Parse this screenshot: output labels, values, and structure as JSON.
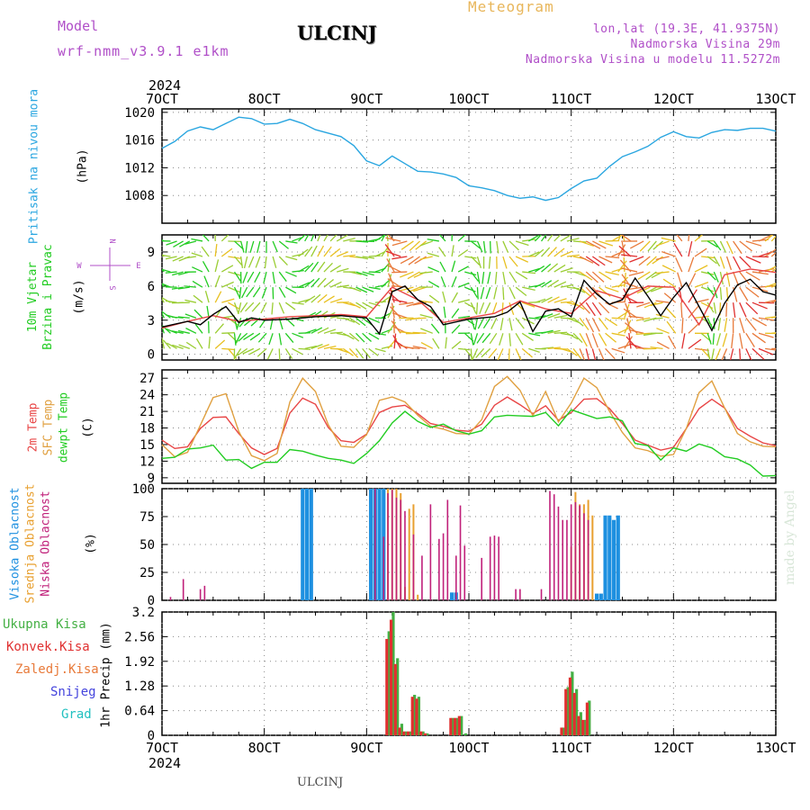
{
  "header": {
    "model_label": "Model",
    "model_name": "wrf-nmm_v3.9.1 e1km",
    "station": "ULCINJ",
    "meteogram": "Meteogram",
    "lonlat": "lon,lat (19.3E, 41.9375N)",
    "elevation": "Nadmorska Visina 29m",
    "model_elevation": "Nadmorska Visina u modelu 11.5272m"
  },
  "footer": "ULCINJ",
  "watermark": "made by Angel",
  "year": "2024",
  "colors": {
    "pressure": "#2aa6e0",
    "wind_label": "#22cc22",
    "temp2m": "#e84545",
    "sfc": "#e0a040",
    "dewpt": "#22cc22",
    "high_cloud": "#1e90e0",
    "mid_cloud": "#e8a030",
    "low_cloud": "#c0207a",
    "total_precip": "#44b044",
    "conv_precip": "#e03030",
    "frz_precip": "#e87a3a",
    "snow": "#4444dd",
    "hail": "#22c0c0",
    "compass": "#b04fc8"
  },
  "chart_data": [
    {
      "type": "line",
      "title": "",
      "ylabel": "Pritisak na nivou mora",
      "unit": "(hPa)",
      "ylim": [
        1004,
        1020.5
      ],
      "yticks": [
        1008,
        1012,
        1016,
        1020
      ],
      "xlim": [
        0,
        144
      ],
      "xticks": [
        "7OCT",
        "8OCT",
        "9OCT",
        "10OCT",
        "11OCT",
        "12OCT",
        "13OCT"
      ],
      "series": [
        {
          "color": "#2aa6e0",
          "x": [
            0,
            3,
            6,
            9,
            12,
            15,
            18,
            21,
            24,
            27,
            30,
            33,
            36,
            39,
            42,
            45,
            48,
            51,
            54,
            57,
            60,
            63,
            66,
            69,
            72,
            75,
            78,
            81,
            84,
            87,
            90,
            93,
            96,
            99,
            102,
            105,
            108,
            111,
            114,
            117,
            120,
            123,
            126,
            129,
            132,
            135,
            138,
            141,
            144
          ],
          "y": [
            1014.8,
            1015.8,
            1017.3,
            1017.9,
            1017.5,
            1018.4,
            1019.3,
            1019.1,
            1018.3,
            1018.4,
            1019.0,
            1018.4,
            1017.5,
            1017.0,
            1016.5,
            1015.2,
            1013.0,
            1012.3,
            1013.7,
            1012.6,
            1011.5,
            1011.4,
            1011.1,
            1010.6,
            1009.4,
            1009.1,
            1008.7,
            1008.0,
            1007.6,
            1007.8,
            1007.3,
            1007.7,
            1009.0,
            1010.1,
            1010.5,
            1012.2,
            1013.6,
            1014.3,
            1015.1,
            1016.4,
            1017.2,
            1016.5,
            1016.3,
            1017.1,
            1017.5,
            1017.4,
            1017.7,
            1017.7,
            1017.3
          ]
        }
      ]
    },
    {
      "type": "line",
      "title": "",
      "ylabel": "10m Vjetar Brzina i Pravac",
      "unit": "(m/s)",
      "compass": {
        "n": "N",
        "s": "S",
        "w": "W",
        "e": "E"
      },
      "ylim": [
        -0.5,
        10.5
      ],
      "yticks": [
        0,
        3,
        6,
        9
      ],
      "xlim": [
        0,
        144
      ],
      "series": [
        {
          "name": "speed",
          "color": "#000000",
          "x": [
            0,
            6,
            9,
            12,
            15,
            18,
            21,
            24,
            30,
            36,
            42,
            48,
            51,
            54,
            57,
            60,
            63,
            66,
            72,
            78,
            81,
            84,
            87,
            90,
            93,
            96,
            99,
            102,
            105,
            108,
            111,
            114,
            117,
            120,
            123,
            126,
            129,
            132,
            135,
            138,
            141,
            144
          ],
          "y": [
            2.4,
            2.9,
            2.6,
            3.5,
            4.2,
            2.8,
            3.2,
            3.0,
            3.1,
            3.3,
            3.4,
            3.2,
            1.8,
            5.5,
            6.0,
            4.8,
            4.2,
            2.6,
            3.1,
            3.3,
            3.7,
            4.6,
            2.0,
            3.8,
            4.0,
            3.3,
            6.5,
            5.3,
            4.4,
            4.8,
            6.7,
            5.1,
            3.4,
            5.0,
            6.3,
            4.2,
            2.1,
            4.5,
            6.1,
            6.6,
            5.5,
            5.2
          ]
        },
        {
          "name": "gust",
          "color": "#e84545",
          "x": [
            0,
            6,
            12,
            18,
            24,
            30,
            36,
            42,
            48,
            54,
            60,
            66,
            72,
            78,
            84,
            90,
            96,
            102,
            108,
            114,
            120,
            126,
            132,
            138,
            144
          ],
          "y": [
            2.3,
            2.9,
            3.4,
            2.9,
            3.1,
            3.3,
            3.4,
            3.5,
            3.3,
            5.9,
            4.8,
            2.8,
            3.2,
            3.6,
            4.7,
            4.0,
            3.6,
            5.6,
            4.9,
            6.0,
            5.9,
            2.6,
            7.0,
            7.5,
            7.2
          ]
        }
      ]
    },
    {
      "type": "line",
      "title": "",
      "ylabels": [
        "2m Temp",
        "SFC Temp",
        "dewpt Temp"
      ],
      "unit": "(C)",
      "ylim": [
        8,
        28.5
      ],
      "yticks": [
        9,
        12,
        15,
        18,
        21,
        24,
        27
      ],
      "xlim": [
        0,
        144
      ],
      "series": [
        {
          "name": "2m Temp",
          "color": "#e84545",
          "x": [
            0,
            3,
            6,
            9,
            12,
            15,
            18,
            21,
            24,
            27,
            30,
            33,
            36,
            39,
            42,
            45,
            48,
            51,
            54,
            57,
            60,
            63,
            66,
            69,
            72,
            75,
            78,
            81,
            84,
            87,
            90,
            93,
            96,
            99,
            102,
            105,
            108,
            111,
            114,
            117,
            120,
            123,
            126,
            129,
            132,
            135,
            138,
            141,
            144
          ],
          "y": [
            15.8,
            14.3,
            14.6,
            17.9,
            19.9,
            20.0,
            17.0,
            14.4,
            13.2,
            14.3,
            20.7,
            23.4,
            22.3,
            18.1,
            15.7,
            15.4,
            16.9,
            20.8,
            21.8,
            22.1,
            20.6,
            18.8,
            18.3,
            17.6,
            17.4,
            18.7,
            22.1,
            23.6,
            22.2,
            20.6,
            22.0,
            19.4,
            20.8,
            23.2,
            23.3,
            21.5,
            18.8,
            15.8,
            14.9,
            14.0,
            14.5,
            17.9,
            21.5,
            23.2,
            21.6,
            17.9,
            16.5,
            15.3,
            14.8
          ]
        },
        {
          "name": "SFC Temp",
          "color": "#e0a040",
          "x": [
            0,
            3,
            6,
            9,
            12,
            15,
            18,
            21,
            24,
            27,
            30,
            33,
            36,
            39,
            42,
            45,
            48,
            51,
            54,
            57,
            60,
            63,
            66,
            69,
            72,
            75,
            78,
            81,
            84,
            87,
            90,
            93,
            96,
            99,
            102,
            105,
            108,
            111,
            114,
            117,
            120,
            123,
            126,
            129,
            132,
            135,
            138,
            141,
            144
          ],
          "y": [
            15.0,
            12.8,
            13.6,
            18.5,
            23.5,
            24.2,
            17.4,
            13.0,
            12.1,
            13.4,
            22.7,
            27.0,
            24.6,
            18.6,
            14.7,
            14.5,
            16.8,
            23.0,
            23.6,
            22.7,
            20.3,
            18.3,
            17.8,
            17.0,
            16.9,
            19.5,
            25.5,
            27.3,
            24.8,
            20.2,
            24.6,
            19.1,
            22.5,
            27.0,
            25.3,
            21.0,
            17.2,
            14.4,
            13.9,
            12.9,
            13.2,
            17.9,
            24.4,
            26.5,
            21.6,
            17.0,
            15.5,
            14.7,
            14.6
          ]
        },
        {
          "name": "dewpt Temp",
          "color": "#22cc22",
          "x": [
            0,
            3,
            6,
            9,
            12,
            15,
            18,
            21,
            24,
            27,
            30,
            33,
            36,
            39,
            42,
            45,
            48,
            51,
            54,
            57,
            60,
            63,
            66,
            69,
            72,
            75,
            78,
            81,
            84,
            87,
            90,
            93,
            96,
            99,
            102,
            105,
            108,
            111,
            114,
            117,
            120,
            123,
            126,
            129,
            132,
            135,
            138,
            141,
            144
          ],
          "y": [
            12.5,
            12.7,
            14.2,
            14.4,
            14.9,
            12.2,
            12.3,
            10.7,
            11.8,
            11.8,
            14.1,
            13.8,
            13.1,
            12.5,
            12.2,
            11.6,
            13.4,
            15.7,
            18.9,
            21.0,
            19.2,
            18.1,
            18.7,
            17.5,
            16.9,
            17.5,
            20.0,
            20.3,
            20.2,
            20.1,
            20.8,
            18.4,
            21.3,
            20.5,
            19.7,
            20.0,
            19.3,
            15.2,
            14.8,
            12.2,
            14.4,
            13.8,
            15.1,
            14.4,
            12.8,
            12.4,
            11.3,
            9.3,
            9.4
          ]
        }
      ]
    },
    {
      "type": "bar",
      "title": "",
      "ylabels": [
        "Visoka Oblacnost",
        "Srednja Oblacnost",
        "Niska Oblacnost"
      ],
      "unit": "(%)",
      "ylim": [
        0,
        100
      ],
      "yticks": [
        0,
        25,
        50,
        75,
        100
      ],
      "xlim": [
        0,
        144
      ],
      "series": [
        {
          "name": "Visoka Oblacnost",
          "color": "#1e90e0",
          "x": [
            33,
            34,
            35,
            49,
            50,
            51,
            52,
            68,
            69,
            102,
            103,
            104,
            105,
            106,
            107
          ],
          "y": [
            100,
            100,
            100,
            100,
            100,
            100,
            100,
            7,
            7,
            6,
            6,
            76,
            76,
            72,
            76
          ]
        },
        {
          "name": "Srednja Oblacnost",
          "color": "#e8a030",
          "x": [
            53,
            54,
            55,
            56,
            57,
            58,
            59,
            60,
            96,
            97,
            98,
            99,
            100,
            101
          ],
          "y": [
            100,
            100,
            100,
            96,
            12,
            82,
            86,
            5,
            48,
            97,
            86,
            86,
            90,
            76
          ]
        },
        {
          "name": "Niska Oblacnost",
          "color": "#c0207a",
          "x": [
            2,
            5,
            9,
            10,
            50,
            52,
            53,
            54,
            55,
            56,
            57,
            59,
            61,
            63,
            65,
            66,
            67,
            69,
            70,
            71,
            75,
            77,
            78,
            79,
            83,
            84,
            89,
            91,
            92,
            93,
            94,
            95,
            96,
            97,
            98,
            99,
            100
          ],
          "y": [
            3,
            19,
            10,
            13,
            100,
            57,
            96,
            99,
            92,
            90,
            80,
            59,
            40,
            86,
            55,
            60,
            90,
            40,
            85,
            49,
            38,
            57,
            58,
            57,
            10,
            10,
            10,
            98,
            95,
            84,
            72,
            72,
            86,
            88,
            85,
            78,
            72
          ]
        }
      ]
    },
    {
      "type": "bar",
      "title": "",
      "ylabels": [
        "1hr Precip (mm)"
      ],
      "legend": [
        "Ukupna Kisa",
        "Konvek.Kisa",
        "Zaledj.Kisa",
        "Snijeg",
        "Grad"
      ],
      "ylim": [
        0,
        3.2
      ],
      "yticks": [
        0,
        0.64,
        1.28,
        1.92,
        2.56,
        3.2
      ],
      "xlim": [
        0,
        144
      ],
      "xticks": [
        "7OCT",
        "8OCT",
        "9OCT",
        "10OCT",
        "11OCT",
        "12OCT",
        "13OCT"
      ],
      "series": [
        {
          "name": "Ukupna Kisa",
          "color": "#44b044",
          "x": [
            53,
            54,
            55,
            56,
            57,
            58,
            59,
            60,
            61,
            62,
            68,
            69,
            70,
            71,
            94,
            95,
            96,
            97,
            98,
            99,
            100
          ],
          "y": [
            2.7,
            3.2,
            2.0,
            0.3,
            0.1,
            0.1,
            1.05,
            1.0,
            0.1,
            0.05,
            0.45,
            0.45,
            0.5,
            0.05,
            0.2,
            1.25,
            1.65,
            1.2,
            0.6,
            0.4,
            0.9
          ]
        },
        {
          "name": "Konvek.Kisa",
          "color": "#e03030",
          "x": [
            53,
            54,
            55,
            56,
            57,
            58,
            59,
            60,
            61,
            62,
            68,
            69,
            70,
            94,
            95,
            96,
            97,
            98,
            99,
            100
          ],
          "y": [
            2.5,
            3.0,
            1.85,
            0.2,
            0.1,
            0.1,
            1.0,
            0.95,
            0.1,
            0.05,
            0.45,
            0.45,
            0.5,
            0.2,
            1.2,
            1.5,
            1.1,
            0.5,
            0.4,
            0.85
          ]
        }
      ]
    }
  ]
}
